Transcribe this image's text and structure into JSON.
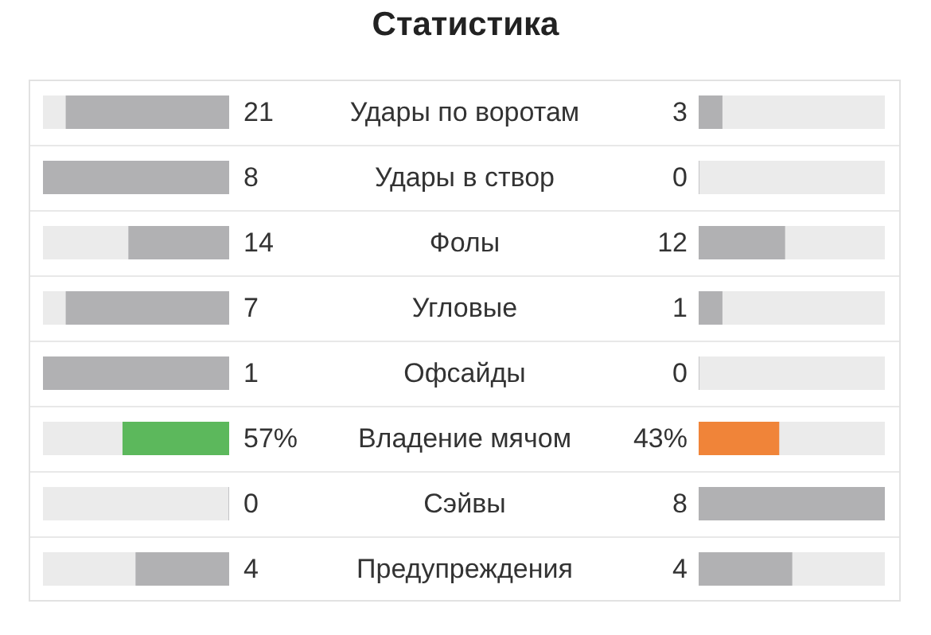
{
  "chart_data": {
    "type": "other",
    "title": "Статистика",
    "categories": [
      "Удары по воротам",
      "Удары в створ",
      "Фолы",
      "Угловые",
      "Офсайды",
      "Владение мячом",
      "Сэйвы",
      "Предупреждения"
    ],
    "series": [
      {
        "values": [
          21,
          8,
          14,
          7,
          1,
          57,
          0,
          4
        ],
        "value_labels": [
          "21",
          "8",
          "14",
          "7",
          "1",
          "57%",
          "0",
          "4"
        ],
        "colors": [
          "#b1b1b3",
          "#b1b1b3",
          "#b1b1b3",
          "#b1b1b3",
          "#b1b1b3",
          "#5cb85c",
          "#b1b1b3",
          "#b1b1b3"
        ]
      },
      {
        "values": [
          3,
          0,
          12,
          1,
          0,
          43,
          8,
          4
        ],
        "value_labels": [
          "3",
          "0",
          "12",
          "1",
          "0",
          "43%",
          "8",
          "4"
        ],
        "colors": [
          "#b1b1b3",
          "#b1b1b3",
          "#b1b1b3",
          "#b1b1b3",
          "#b1b1b3",
          "#f08439",
          "#b1b1b3",
          "#b1b1b3"
        ]
      }
    ]
  }
}
